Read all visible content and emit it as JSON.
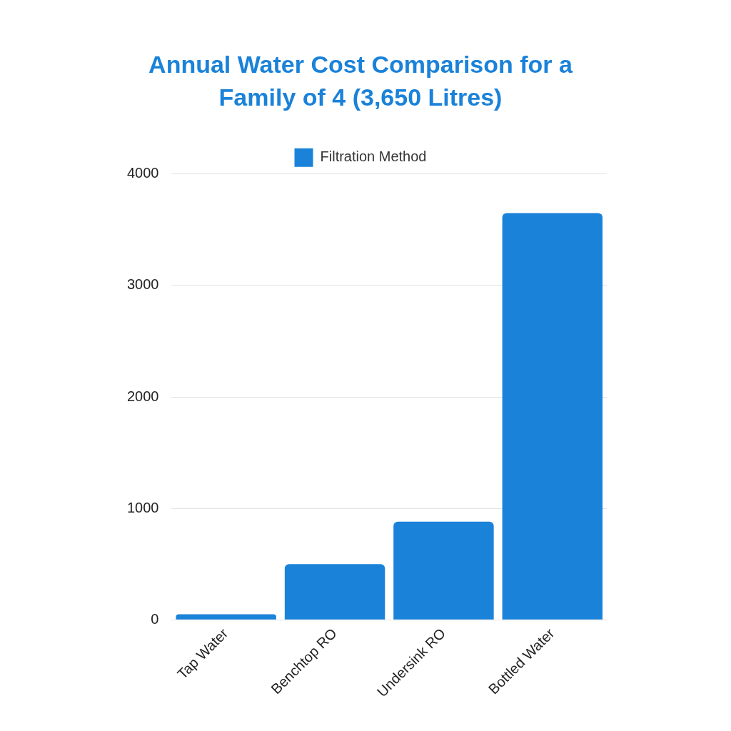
{
  "chart_data": {
    "type": "bar",
    "title": [
      "Annual Water Cost Comparison for a",
      "Family of 4 (3,650 Litres)"
    ],
    "categories": [
      "Tap Water",
      "Benchtop RO",
      "Undersink RO",
      "Bottled Water"
    ],
    "series": [
      {
        "name": "Filtration Method",
        "color": "#1a82d9",
        "values": [
          50,
          500,
          880,
          3650
        ]
      }
    ],
    "ylim": [
      0,
      4000
    ],
    "yticks": [
      0,
      1000,
      2000,
      3000,
      4000
    ],
    "grid": true,
    "legend": "top"
  }
}
